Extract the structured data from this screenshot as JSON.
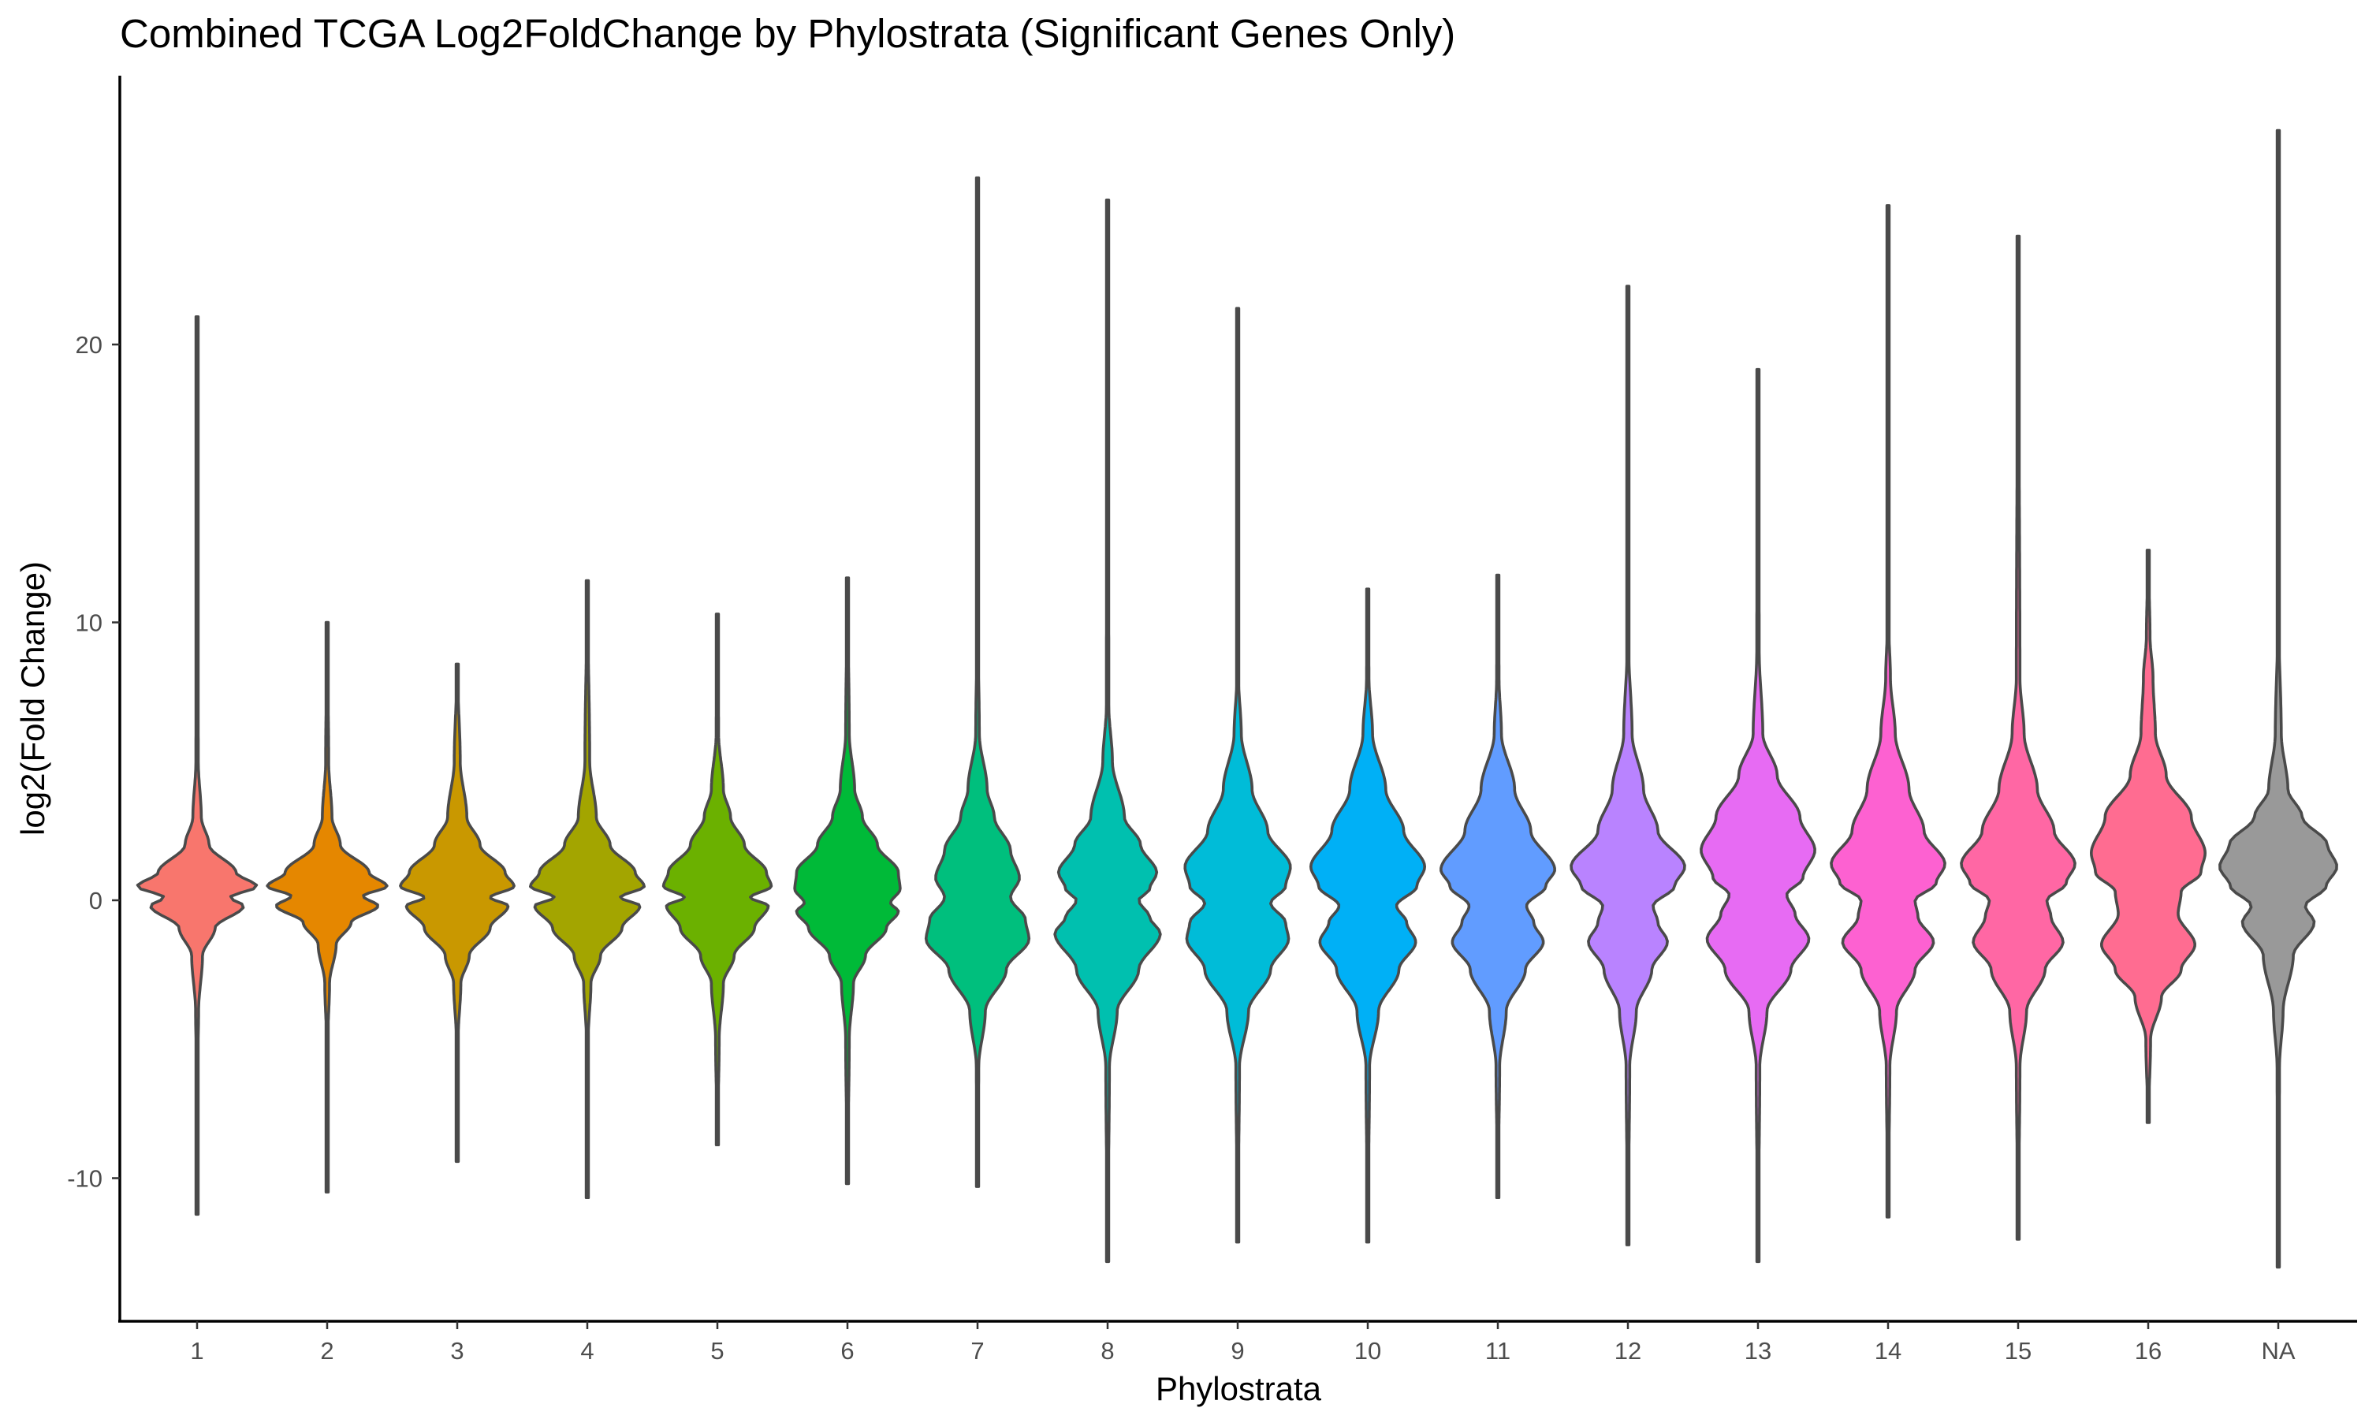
{
  "chart_data": {
    "type": "violin",
    "title": "Combined TCGA Log2FoldChange by Phylostrata (Significant Genes Only)",
    "xlabel": "Phylostrata",
    "ylabel": "log2(Fold Change)",
    "ylim": [
      -15,
      29
    ],
    "yticks": [
      -10,
      0,
      10,
      20
    ],
    "grid": false,
    "legend": "none",
    "categories": [
      "1",
      "2",
      "3",
      "4",
      "5",
      "6",
      "7",
      "8",
      "9",
      "10",
      "11",
      "12",
      "13",
      "14",
      "15",
      "16",
      "NA"
    ],
    "colors": [
      "#F8766D",
      "#E58700",
      "#C99800",
      "#A3A500",
      "#6BB100",
      "#00BA38",
      "#00BF7D",
      "#00C0AF",
      "#00BCD8",
      "#00B0F6",
      "#619CFF",
      "#B983FF",
      "#E76BF3",
      "#FD61D1",
      "#FF67A4",
      "#FF6C91",
      "#999999"
    ],
    "violins": [
      {
        "category": "1",
        "min": -11.3,
        "max": 21.0,
        "profile": [
          [
            -11.3,
            0.002
          ],
          [
            -6,
            0.01
          ],
          [
            -4,
            0.025
          ],
          [
            -2,
            0.09
          ],
          [
            -1,
            0.3
          ],
          [
            -0.2,
            0.78
          ],
          [
            0.1,
            0.55
          ],
          [
            0.5,
            1.0
          ],
          [
            1,
            0.65
          ],
          [
            2,
            0.2
          ],
          [
            3,
            0.07
          ],
          [
            5,
            0.02
          ],
          [
            10,
            0.008
          ],
          [
            21,
            0.002
          ]
        ]
      },
      {
        "category": "2",
        "min": -10.5,
        "max": 10.0,
        "profile": [
          [
            -10.5,
            0.002
          ],
          [
            -5,
            0.012
          ],
          [
            -3,
            0.04
          ],
          [
            -1.6,
            0.15
          ],
          [
            -0.8,
            0.4
          ],
          [
            -0.2,
            0.85
          ],
          [
            0.15,
            0.6
          ],
          [
            0.5,
            1.0
          ],
          [
            1,
            0.7
          ],
          [
            2,
            0.22
          ],
          [
            3,
            0.08
          ],
          [
            5,
            0.025
          ],
          [
            10,
            0.002
          ]
        ]
      },
      {
        "category": "3",
        "min": -9.4,
        "max": 8.5,
        "profile": [
          [
            -9.4,
            0.002
          ],
          [
            -5,
            0.015
          ],
          [
            -3,
            0.06
          ],
          [
            -2,
            0.2
          ],
          [
            -1,
            0.55
          ],
          [
            -0.2,
            0.85
          ],
          [
            0.1,
            0.55
          ],
          [
            0.5,
            0.95
          ],
          [
            1,
            0.8
          ],
          [
            2,
            0.38
          ],
          [
            3,
            0.16
          ],
          [
            5,
            0.05
          ],
          [
            8.5,
            0.002
          ]
        ]
      },
      {
        "category": "4",
        "min": -10.7,
        "max": 11.5,
        "profile": [
          [
            -10.7,
            0.002
          ],
          [
            -5,
            0.015
          ],
          [
            -3,
            0.06
          ],
          [
            -2,
            0.22
          ],
          [
            -1,
            0.58
          ],
          [
            -0.2,
            0.88
          ],
          [
            0.1,
            0.55
          ],
          [
            0.5,
            0.95
          ],
          [
            1,
            0.8
          ],
          [
            2,
            0.38
          ],
          [
            3,
            0.15
          ],
          [
            5,
            0.04
          ],
          [
            11.5,
            0.002
          ]
        ]
      },
      {
        "category": "5",
        "min": -8.8,
        "max": 10.3,
        "profile": [
          [
            -8.8,
            0.002
          ],
          [
            -5,
            0.03
          ],
          [
            -3,
            0.1
          ],
          [
            -2,
            0.28
          ],
          [
            -1,
            0.62
          ],
          [
            -0.2,
            0.85
          ],
          [
            0.1,
            0.55
          ],
          [
            0.5,
            0.9
          ],
          [
            1,
            0.82
          ],
          [
            2,
            0.45
          ],
          [
            3,
            0.22
          ],
          [
            4,
            0.1
          ],
          [
            6,
            0.02
          ],
          [
            10.3,
            0.002
          ]
        ]
      },
      {
        "category": "6",
        "min": -10.2,
        "max": 11.6,
        "profile": [
          [
            -10.2,
            0.002
          ],
          [
            -5,
            0.03
          ],
          [
            -3,
            0.1
          ],
          [
            -2,
            0.3
          ],
          [
            -1,
            0.65
          ],
          [
            -0.4,
            0.85
          ],
          [
            -0.1,
            0.72
          ],
          [
            0.4,
            0.88
          ],
          [
            1,
            0.85
          ],
          [
            2,
            0.5
          ],
          [
            3,
            0.25
          ],
          [
            4,
            0.12
          ],
          [
            6,
            0.03
          ],
          [
            11.6,
            0.002
          ]
        ]
      },
      {
        "category": "7",
        "min": -10.3,
        "max": 26.0,
        "profile": [
          [
            -10.3,
            0.002
          ],
          [
            -6,
            0.02
          ],
          [
            -4,
            0.13
          ],
          [
            -2.5,
            0.48
          ],
          [
            -1.4,
            0.86
          ],
          [
            -0.7,
            0.8
          ],
          [
            0.1,
            0.55
          ],
          [
            0.8,
            0.7
          ],
          [
            1.8,
            0.55
          ],
          [
            3,
            0.28
          ],
          [
            4,
            0.16
          ],
          [
            6,
            0.03
          ],
          [
            10,
            0.008
          ],
          [
            26,
            0.002
          ]
        ]
      },
      {
        "category": "8",
        "min": -13.0,
        "max": 25.2,
        "profile": [
          [
            -13,
            0.002
          ],
          [
            -6,
            0.03
          ],
          [
            -4,
            0.16
          ],
          [
            -2.5,
            0.52
          ],
          [
            -1.2,
            0.88
          ],
          [
            -0.6,
            0.7
          ],
          [
            0,
            0.52
          ],
          [
            0.4,
            0.7
          ],
          [
            1,
            0.82
          ],
          [
            2,
            0.55
          ],
          [
            3,
            0.28
          ],
          [
            5,
            0.08
          ],
          [
            7,
            0.02
          ],
          [
            25.2,
            0.002
          ]
        ]
      },
      {
        "category": "9",
        "min": -12.3,
        "max": 21.3,
        "profile": [
          [
            -12.3,
            0.002
          ],
          [
            -6,
            0.03
          ],
          [
            -4,
            0.18
          ],
          [
            -2.5,
            0.55
          ],
          [
            -1.4,
            0.85
          ],
          [
            -0.8,
            0.8
          ],
          [
            -0.1,
            0.55
          ],
          [
            0.5,
            0.8
          ],
          [
            1.2,
            0.88
          ],
          [
            2.5,
            0.5
          ],
          [
            4,
            0.24
          ],
          [
            6,
            0.06
          ],
          [
            8,
            0.015
          ],
          [
            21.3,
            0.002
          ]
        ]
      },
      {
        "category": "10",
        "min": -12.3,
        "max": 11.2,
        "profile": [
          [
            -12.3,
            0.002
          ],
          [
            -6,
            0.03
          ],
          [
            -4,
            0.18
          ],
          [
            -2.5,
            0.52
          ],
          [
            -1.5,
            0.8
          ],
          [
            -0.8,
            0.65
          ],
          [
            -0.2,
            0.48
          ],
          [
            0.5,
            0.82
          ],
          [
            1.2,
            0.95
          ],
          [
            2.5,
            0.6
          ],
          [
            4,
            0.3
          ],
          [
            6,
            0.08
          ],
          [
            8,
            0.02
          ],
          [
            11.2,
            0.002
          ]
        ]
      },
      {
        "category": "11",
        "min": -10.7,
        "max": 11.7,
        "profile": [
          [
            -10.7,
            0.002
          ],
          [
            -6,
            0.03
          ],
          [
            -4,
            0.14
          ],
          [
            -2.5,
            0.46
          ],
          [
            -1.5,
            0.76
          ],
          [
            -0.8,
            0.6
          ],
          [
            -0.2,
            0.48
          ],
          [
            0.5,
            0.8
          ],
          [
            1.1,
            0.95
          ],
          [
            2.5,
            0.55
          ],
          [
            4,
            0.28
          ],
          [
            6,
            0.06
          ],
          [
            8,
            0.02
          ],
          [
            11.7,
            0.002
          ]
        ]
      },
      {
        "category": "12",
        "min": -12.4,
        "max": 22.1,
        "profile": [
          [
            -12.4,
            0.002
          ],
          [
            -6,
            0.03
          ],
          [
            -4,
            0.14
          ],
          [
            -2.5,
            0.4
          ],
          [
            -1.5,
            0.66
          ],
          [
            -0.8,
            0.5
          ],
          [
            -0.2,
            0.42
          ],
          [
            0.5,
            0.78
          ],
          [
            1.2,
            0.95
          ],
          [
            2.5,
            0.5
          ],
          [
            4,
            0.26
          ],
          [
            6,
            0.07
          ],
          [
            9,
            0.015
          ],
          [
            22.1,
            0.002
          ]
        ]
      },
      {
        "category": "13",
        "min": -13.0,
        "max": 19.1,
        "profile": [
          [
            -13,
            0.002
          ],
          [
            -6,
            0.03
          ],
          [
            -4,
            0.15
          ],
          [
            -2.5,
            0.55
          ],
          [
            -1.4,
            0.85
          ],
          [
            -0.5,
            0.62
          ],
          [
            0.2,
            0.48
          ],
          [
            0.8,
            0.75
          ],
          [
            1.8,
            0.95
          ],
          [
            3,
            0.7
          ],
          [
            4.5,
            0.32
          ],
          [
            6,
            0.08
          ],
          [
            9,
            0.02
          ],
          [
            19.1,
            0.002
          ]
        ]
      },
      {
        "category": "14",
        "min": -11.4,
        "max": 25.0,
        "profile": [
          [
            -11.4,
            0.002
          ],
          [
            -6,
            0.03
          ],
          [
            -4,
            0.14
          ],
          [
            -2.5,
            0.45
          ],
          [
            -1.5,
            0.76
          ],
          [
            -0.6,
            0.5
          ],
          [
            0,
            0.45
          ],
          [
            0.6,
            0.8
          ],
          [
            1.3,
            0.95
          ],
          [
            2.5,
            0.6
          ],
          [
            4,
            0.35
          ],
          [
            6,
            0.12
          ],
          [
            8,
            0.04
          ],
          [
            10,
            0.01
          ],
          [
            25,
            0.002
          ]
        ]
      },
      {
        "category": "15",
        "min": -12.2,
        "max": 23.9,
        "profile": [
          [
            -12.2,
            0.002
          ],
          [
            -6,
            0.03
          ],
          [
            -4,
            0.14
          ],
          [
            -2.5,
            0.45
          ],
          [
            -1.5,
            0.75
          ],
          [
            -0.6,
            0.55
          ],
          [
            0,
            0.48
          ],
          [
            0.6,
            0.8
          ],
          [
            1.3,
            0.95
          ],
          [
            2.5,
            0.6
          ],
          [
            4,
            0.32
          ],
          [
            6,
            0.1
          ],
          [
            8,
            0.03
          ],
          [
            23.9,
            0.002
          ]
        ]
      },
      {
        "category": "16",
        "min": -8.0,
        "max": 12.6,
        "profile": [
          [
            -8,
            0.004
          ],
          [
            -5,
            0.04
          ],
          [
            -3.5,
            0.22
          ],
          [
            -2.5,
            0.55
          ],
          [
            -1.6,
            0.78
          ],
          [
            -0.5,
            0.5
          ],
          [
            0.3,
            0.55
          ],
          [
            1,
            0.88
          ],
          [
            1.7,
            0.95
          ],
          [
            3,
            0.72
          ],
          [
            4.5,
            0.3
          ],
          [
            6,
            0.12
          ],
          [
            8,
            0.08
          ],
          [
            9.5,
            0.03
          ],
          [
            12.6,
            0.002
          ]
        ]
      },
      {
        "category": "NA",
        "min": -13.2,
        "max": 27.7,
        "profile": [
          [
            -13.2,
            0.002
          ],
          [
            -6,
            0.02
          ],
          [
            -4,
            0.08
          ],
          [
            -2,
            0.25
          ],
          [
            -0.8,
            0.6
          ],
          [
            -0.2,
            0.45
          ],
          [
            0.5,
            0.8
          ],
          [
            1.2,
            0.98
          ],
          [
            2,
            0.82
          ],
          [
            3,
            0.4
          ],
          [
            4,
            0.16
          ],
          [
            6,
            0.05
          ],
          [
            10,
            0.008
          ],
          [
            27.7,
            0.002
          ]
        ]
      }
    ]
  }
}
